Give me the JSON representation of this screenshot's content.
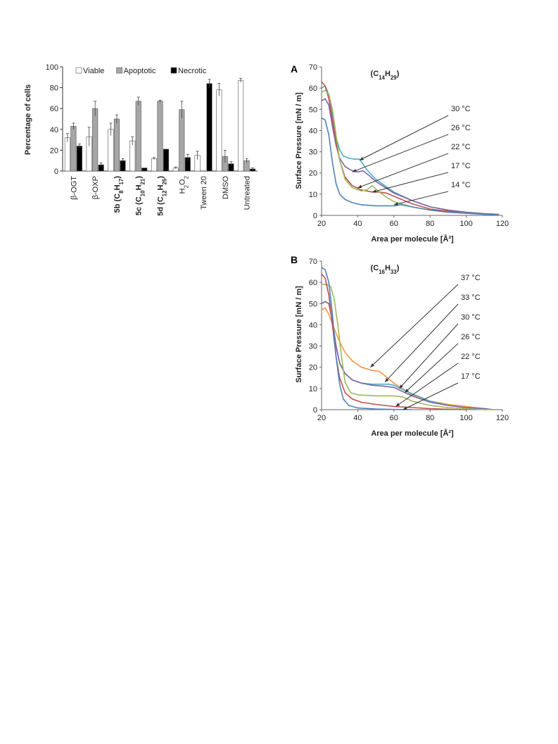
{
  "chart_data": [
    {
      "type": "bar",
      "ylabel": "Percentage of cells",
      "ylim": [
        0,
        100
      ],
      "yticks": [
        0,
        20,
        40,
        60,
        80,
        100
      ],
      "categories": [
        {
          "parts": [
            {
              "t": "β-OGT",
              "s": "n"
            }
          ],
          "bold": false
        },
        {
          "parts": [
            {
              "t": "β-OXP",
              "s": "n"
            }
          ],
          "bold": false
        },
        {
          "parts": [
            {
              "t": "5b (C",
              "s": "n"
            },
            {
              "t": "8",
              "s": "sub"
            },
            {
              "t": "H",
              "s": "n"
            },
            {
              "t": "17",
              "s": "sub"
            },
            {
              "t": ")",
              "s": "n"
            }
          ],
          "bold": true
        },
        {
          "parts": [
            {
              "t": "5c (C",
              "s": "n"
            },
            {
              "t": "10",
              "s": "sub"
            },
            {
              "t": "H",
              "s": "n"
            },
            {
              "t": "21",
              "s": "sub"
            },
            {
              "t": ")",
              "s": "n"
            }
          ],
          "bold": true
        },
        {
          "parts": [
            {
              "t": "5d (C",
              "s": "n"
            },
            {
              "t": "12",
              "s": "sub"
            },
            {
              "t": "H",
              "s": "n"
            },
            {
              "t": "25",
              "s": "sub"
            },
            {
              "t": ")",
              "s": "n"
            }
          ],
          "bold": true
        },
        {
          "parts": [
            {
              "t": "H",
              "s": "n"
            },
            {
              "t": "2",
              "s": "sub"
            },
            {
              "t": "O",
              "s": "n"
            },
            {
              "t": "2",
              "s": "sub"
            }
          ],
          "bold": false
        },
        {
          "parts": [
            {
              "t": "Tween 20",
              "s": "n"
            }
          ],
          "bold": false
        },
        {
          "parts": [
            {
              "t": "DMSO",
              "s": "n"
            }
          ],
          "bold": false
        },
        {
          "parts": [
            {
              "t": "Untreated",
              "s": "n"
            }
          ],
          "bold": false
        }
      ],
      "series": [
        {
          "name": "Viable",
          "color": "#ffffff",
          "values": [
            32,
            33,
            40,
            29,
            12,
            3,
            15,
            78,
            87
          ],
          "errors": [
            4,
            9,
            6,
            4,
            1,
            1,
            4,
            6,
            2
          ]
        },
        {
          "name": "Apoptotic",
          "color": "#a6a6a6",
          "values": [
            43,
            60,
            50,
            67,
            67,
            59,
            0,
            14,
            10
          ],
          "errors": [
            3,
            7,
            4,
            4,
            1,
            8,
            0,
            6,
            2
          ]
        },
        {
          "name": "Necrotic",
          "color": "#000000",
          "values": [
            24,
            6,
            10,
            3,
            21,
            13,
            84,
            7,
            2
          ],
          "errors": [
            2,
            2,
            2,
            0,
            0,
            3,
            4,
            2,
            1
          ]
        }
      ],
      "legend": "top"
    },
    {
      "type": "line",
      "panel": "A",
      "title_parts": [
        {
          "t": "(C",
          "s": "n"
        },
        {
          "t": "14",
          "s": "sub"
        },
        {
          "t": "H",
          "s": "n"
        },
        {
          "t": "29",
          "s": "sub"
        },
        {
          "t": ")",
          "s": "n"
        }
      ],
      "xlabel": "Area per molecule  [Å²]",
      "ylabel": "Surface Pressure [mN / m]",
      "xlim": [
        20,
        120
      ],
      "ylim": [
        0,
        70
      ],
      "xticks": [
        20,
        40,
        60,
        80,
        100,
        120
      ],
      "yticks": [
        0,
        10,
        20,
        30,
        40,
        50,
        60,
        70
      ],
      "series": [
        {
          "name": "30 °C",
          "color": "#4bacc6",
          "points": [
            [
              20,
              60
            ],
            [
              22,
              61
            ],
            [
              24,
              57
            ],
            [
              26,
              47
            ],
            [
              28,
              37
            ],
            [
              30,
              31
            ],
            [
              32,
              28
            ],
            [
              35,
              27
            ],
            [
              38,
              26.5
            ],
            [
              41,
              26.5
            ],
            [
              45,
              21.5
            ],
            [
              50,
              17
            ],
            [
              60,
              11
            ],
            [
              70,
              7
            ],
            [
              80,
              4
            ],
            [
              90,
              2.5
            ],
            [
              100,
              1.5
            ],
            [
              110,
              0.8
            ],
            [
              118,
              0.5
            ]
          ]
        },
        {
          "name": "26 °C",
          "color": "#8064a2",
          "points": [
            [
              20,
              54
            ],
            [
              22,
              55
            ],
            [
              24,
              52
            ],
            [
              26,
              42
            ],
            [
              28,
              33
            ],
            [
              30,
              27
            ],
            [
              33,
              23
            ],
            [
              37,
              21
            ],
            [
              40,
              20.5
            ],
            [
              43,
              21
            ],
            [
              46,
              19
            ],
            [
              50,
              16
            ],
            [
              60,
              10.5
            ],
            [
              70,
              7
            ],
            [
              80,
              4
            ],
            [
              90,
              2.5
            ],
            [
              100,
              1.5
            ],
            [
              110,
              0.8
            ],
            [
              118,
              0.5
            ]
          ]
        },
        {
          "name": "22 °C",
          "color": "#c0504d",
          "points": [
            [
              20,
              63
            ],
            [
              22,
              61
            ],
            [
              24,
              55
            ],
            [
              26,
              45
            ],
            [
              28,
              35
            ],
            [
              30,
              26
            ],
            [
              33,
              18
            ],
            [
              37,
              14
            ],
            [
              42,
              12
            ],
            [
              48,
              11
            ],
            [
              52,
              11
            ],
            [
              56,
              10.5
            ],
            [
              60,
              9
            ],
            [
              70,
              5.5
            ],
            [
              80,
              3
            ],
            [
              90,
              2
            ],
            [
              100,
              1
            ],
            [
              110,
              0.6
            ],
            [
              118,
              0.4
            ]
          ]
        },
        {
          "name": "17 °C",
          "color": "#9bbb59",
          "points": [
            [
              20,
              58
            ],
            [
              22,
              59
            ],
            [
              24,
              57
            ],
            [
              26,
              50
            ],
            [
              28,
              38
            ],
            [
              30,
              26
            ],
            [
              33,
              17
            ],
            [
              37,
              13
            ],
            [
              42,
              11.5
            ],
            [
              45,
              12
            ],
            [
              48,
              14
            ],
            [
              52,
              11
            ],
            [
              56,
              8.5
            ],
            [
              60,
              6.5
            ],
            [
              70,
              4
            ],
            [
              80,
              2.5
            ],
            [
              90,
              1.5
            ],
            [
              100,
              1
            ],
            [
              110,
              0.5
            ],
            [
              118,
              0.4
            ]
          ]
        },
        {
          "name": "14 °C",
          "color": "#4f81bd",
          "points": [
            [
              20,
              46
            ],
            [
              22,
              45
            ],
            [
              24,
              38
            ],
            [
              26,
              25
            ],
            [
              28,
              15
            ],
            [
              30,
              10
            ],
            [
              33,
              7.5
            ],
            [
              37,
              6
            ],
            [
              42,
              5
            ],
            [
              50,
              4.5
            ],
            [
              60,
              4.5
            ],
            [
              64,
              5
            ],
            [
              70,
              4
            ],
            [
              80,
              2.5
            ],
            [
              90,
              1.5
            ],
            [
              100,
              1
            ],
            [
              110,
              0.5
            ],
            [
              118,
              0.4
            ]
          ]
        }
      ]
    },
    {
      "type": "line",
      "panel": "B",
      "title_parts": [
        {
          "t": "(C",
          "s": "n"
        },
        {
          "t": "16",
          "s": "sub"
        },
        {
          "t": "H",
          "s": "n"
        },
        {
          "t": "33",
          "s": "sub"
        },
        {
          "t": ")",
          "s": "n"
        }
      ],
      "xlabel": "Area per molecule  [Å²]",
      "ylabel": "Surface Pressure [mN / m]",
      "xlim": [
        20,
        120
      ],
      "ylim": [
        0,
        70
      ],
      "xticks": [
        20,
        40,
        60,
        80,
        100,
        120
      ],
      "yticks": [
        0,
        10,
        20,
        30,
        40,
        50,
        60,
        70
      ],
      "series": [
        {
          "name": "37 °C",
          "color": "#f79646",
          "points": [
            [
              20,
              47
            ],
            [
              22,
              48
            ],
            [
              24,
              45
            ],
            [
              27,
              38
            ],
            [
              30,
              32
            ],
            [
              33,
              27
            ],
            [
              37,
              23
            ],
            [
              42,
              20
            ],
            [
              48,
              18.5
            ],
            [
              52,
              18
            ],
            [
              55,
              16
            ],
            [
              60,
              12.5
            ],
            [
              70,
              7
            ],
            [
              80,
              4
            ],
            [
              90,
              2.5
            ],
            [
              100,
              1.5
            ],
            [
              110,
              0.5
            ],
            [
              115,
              0
            ]
          ]
        },
        {
          "name": "33 °C",
          "color": "#4bacc6",
          "points": [
            [
              20,
              50
            ],
            [
              22,
              51
            ],
            [
              24,
              50
            ],
            [
              26,
              42
            ],
            [
              28,
              30
            ],
            [
              30,
              22
            ],
            [
              33,
              17
            ],
            [
              37,
              14
            ],
            [
              42,
              12.5
            ],
            [
              48,
              12
            ],
            [
              52,
              12
            ],
            [
              57,
              12
            ],
            [
              60,
              11.5
            ],
            [
              65,
              9.5
            ],
            [
              70,
              7.5
            ],
            [
              80,
              4
            ],
            [
              90,
              2
            ],
            [
              100,
              1
            ],
            [
              110,
              0.5
            ],
            [
              115,
              0
            ]
          ]
        },
        {
          "name": "30 °C",
          "color": "#8064a2",
          "points": [
            [
              20,
              50
            ],
            [
              22,
              51
            ],
            [
              24,
              50
            ],
            [
              26,
              42
            ],
            [
              28,
              30
            ],
            [
              30,
              22
            ],
            [
              33,
              17
            ],
            [
              37,
              14
            ],
            [
              42,
              12.5
            ],
            [
              48,
              11.5
            ],
            [
              55,
              11
            ],
            [
              60,
              10.5
            ],
            [
              65,
              8.5
            ],
            [
              70,
              6.5
            ],
            [
              80,
              3.5
            ],
            [
              90,
              2
            ],
            [
              100,
              1
            ],
            [
              110,
              0.5
            ],
            [
              115,
              0
            ]
          ]
        },
        {
          "name": "26 °C",
          "color": "#9bbb59",
          "points": [
            [
              20,
              59
            ],
            [
              23,
              59
            ],
            [
              25,
              58
            ],
            [
              27,
              52
            ],
            [
              29,
              40
            ],
            [
              31,
              25
            ],
            [
              33,
              13
            ],
            [
              36,
              8
            ],
            [
              40,
              7
            ],
            [
              50,
              6.5
            ],
            [
              60,
              6.5
            ],
            [
              65,
              6
            ],
            [
              70,
              4
            ],
            [
              80,
              2
            ],
            [
              90,
              1
            ],
            [
              100,
              0.5
            ],
            [
              110,
              0
            ],
            [
              115,
              0
            ]
          ]
        },
        {
          "name": "22 °C",
          "color": "#c0504d",
          "points": [
            [
              20,
              64
            ],
            [
              22,
              62
            ],
            [
              24,
              54
            ],
            [
              26,
              40
            ],
            [
              28,
              25
            ],
            [
              30,
              15
            ],
            [
              33,
              8
            ],
            [
              37,
              5
            ],
            [
              42,
              3.5
            ],
            [
              50,
              2.5
            ],
            [
              60,
              1.5
            ],
            [
              70,
              1
            ],
            [
              80,
              0.5
            ],
            [
              90,
              0.2
            ],
            [
              100,
              0
            ]
          ]
        },
        {
          "name": "17 °C",
          "color": "#4f81bd",
          "points": [
            [
              20,
              67
            ],
            [
              22,
              66
            ],
            [
              24,
              60
            ],
            [
              26,
              45
            ],
            [
              28,
              25
            ],
            [
              30,
              12
            ],
            [
              32,
              5
            ],
            [
              35,
              2
            ],
            [
              40,
              0.8
            ],
            [
              50,
              0.3
            ],
            [
              60,
              0.1
            ],
            [
              70,
              0
            ]
          ]
        }
      ]
    }
  ]
}
